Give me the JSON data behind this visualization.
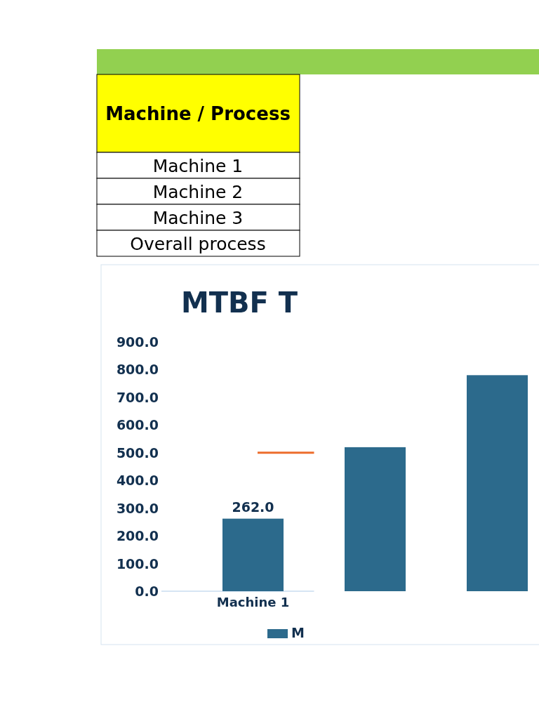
{
  "chart_data": {
    "type": "bar",
    "title": "MTBF T",
    "categories": [
      "Machine 1",
      null,
      null
    ],
    "series": [
      {
        "name": "M",
        "color": "#2c6a8c",
        "values": [
          262.0,
          520,
          780
        ],
        "value_labels": [
          "262.0",
          null,
          null
        ]
      }
    ],
    "ylim": [
      0,
      900
    ],
    "yticks": [
      {
        "value": 0,
        "label": "0.0"
      },
      {
        "value": 100,
        "label": "100.0"
      },
      {
        "value": 200,
        "label": "200.0"
      },
      {
        "value": 300,
        "label": "300.0"
      },
      {
        "value": 400,
        "label": "400.0"
      },
      {
        "value": 500,
        "label": "500.0"
      },
      {
        "value": 600,
        "label": "600.0"
      },
      {
        "value": 700,
        "label": "700.0"
      },
      {
        "value": 800,
        "label": "800.0"
      },
      {
        "value": 900,
        "label": "900.0"
      }
    ],
    "ref_lines": [
      {
        "axis": "y",
        "value": 500,
        "color": "#ed6d2c"
      }
    ],
    "grid": false,
    "legend": "bottom",
    "annotations": [
      "Machine / Process",
      "Machine 1",
      "Machine 2",
      "Machine 3",
      "Overall process"
    ]
  }
}
